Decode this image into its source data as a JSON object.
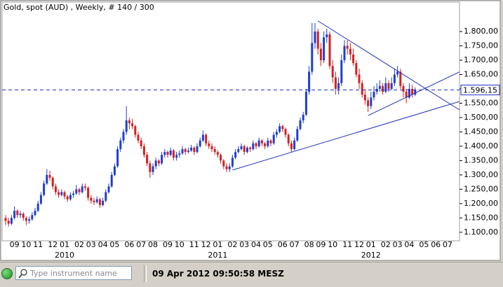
{
  "chart_data": {
    "type": "candlestick",
    "title": "Gold, spot (AUD) , Weekly, # 140 / 300",
    "up_color": "#1f3fd0",
    "down_color": "#d42020",
    "grid": false,
    "ylim": [
      1080,
      1866
    ],
    "yticks": [
      {
        "value": 1100,
        "label": "1.100,00"
      },
      {
        "value": 1150,
        "label": "1.150,00"
      },
      {
        "value": 1200,
        "label": "1.200,00"
      },
      {
        "value": 1250,
        "label": "1.250,00"
      },
      {
        "value": 1300,
        "label": "1.300,00"
      },
      {
        "value": 1350,
        "label": "1.350,00"
      },
      {
        "value": 1400,
        "label": "1.400,00"
      },
      {
        "value": 1450,
        "label": "1.450,00"
      },
      {
        "value": 1500,
        "label": "1.500,00"
      },
      {
        "value": 1550,
        "label": "1.550,00"
      },
      {
        "value": 1600,
        "label": "1.600,00"
      },
      {
        "value": 1650,
        "label": "1.650,00"
      },
      {
        "value": 1700,
        "label": "1.700,00"
      },
      {
        "value": 1750,
        "label": "1.750,00"
      },
      {
        "value": 1800,
        "label": "1.800,00"
      }
    ],
    "last_price": {
      "value": 1596.15,
      "label": "1.596,15"
    },
    "categories": [
      null,
      null,
      null,
      "09",
      null,
      null,
      null,
      "10",
      null,
      null,
      null,
      "11",
      null,
      null,
      null,
      null,
      "12",
      null,
      null,
      null,
      {
        "label": "01",
        "group": "2010"
      },
      null,
      null,
      null,
      null,
      "02",
      null,
      null,
      null,
      "03",
      null,
      null,
      null,
      "04",
      null,
      null,
      null,
      "05",
      null,
      null,
      null,
      null,
      "06",
      null,
      null,
      null,
      "07",
      null,
      null,
      null,
      "08",
      null,
      null,
      null,
      null,
      "09",
      null,
      null,
      null,
      "10",
      null,
      null,
      null,
      null,
      "11",
      null,
      null,
      null,
      "12",
      null,
      null,
      null,
      {
        "label": "01",
        "group": "2011"
      },
      null,
      null,
      null,
      null,
      "02",
      null,
      null,
      null,
      "03",
      null,
      null,
      null,
      "04",
      null,
      null,
      null,
      "05",
      null,
      null,
      null,
      null,
      "06",
      null,
      null,
      null,
      "07",
      null,
      null,
      null,
      null,
      "08",
      null,
      null,
      null,
      "09",
      null,
      null,
      null,
      "10",
      null,
      null,
      null,
      null,
      "11",
      null,
      null,
      null,
      "12",
      null,
      null,
      null,
      {
        "label": "01",
        "group": "2012"
      },
      null,
      null,
      null,
      null,
      "02",
      null,
      null,
      null,
      "03",
      null,
      null,
      null,
      "04",
      null,
      null,
      null,
      null,
      "05",
      null,
      null,
      null,
      "06",
      null,
      null,
      null,
      "07",
      null,
      null,
      null,
      null,
      null
    ],
    "ohlc": [
      [
        1150,
        1160,
        1125,
        1140
      ],
      [
        1140,
        1150,
        1120,
        1130
      ],
      [
        1130,
        1160,
        1125,
        1150
      ],
      [
        1150,
        1190,
        1145,
        1175
      ],
      [
        1175,
        1180,
        1150,
        1160
      ],
      [
        1160,
        1175,
        1150,
        1165
      ],
      [
        1165,
        1170,
        1140,
        1150
      ],
      [
        1150,
        1155,
        1125,
        1140
      ],
      [
        1140,
        1155,
        1130,
        1145
      ],
      [
        1145,
        1170,
        1140,
        1160
      ],
      [
        1160,
        1185,
        1155,
        1175
      ],
      [
        1175,
        1210,
        1170,
        1200
      ],
      [
        1200,
        1240,
        1195,
        1230
      ],
      [
        1230,
        1280,
        1225,
        1270
      ],
      [
        1270,
        1320,
        1265,
        1300
      ],
      [
        1300,
        1315,
        1280,
        1290
      ],
      [
        1290,
        1295,
        1250,
        1260
      ],
      [
        1260,
        1270,
        1230,
        1240
      ],
      [
        1240,
        1250,
        1220,
        1230
      ],
      [
        1230,
        1250,
        1225,
        1240
      ],
      [
        1240,
        1245,
        1215,
        1225
      ],
      [
        1225,
        1230,
        1205,
        1215
      ],
      [
        1215,
        1240,
        1210,
        1230
      ],
      [
        1230,
        1245,
        1220,
        1235
      ],
      [
        1235,
        1265,
        1230,
        1250
      ],
      [
        1250,
        1255,
        1230,
        1240
      ],
      [
        1240,
        1270,
        1235,
        1260
      ],
      [
        1260,
        1270,
        1245,
        1255
      ],
      [
        1255,
        1260,
        1210,
        1220
      ],
      [
        1220,
        1230,
        1200,
        1210
      ],
      [
        1210,
        1220,
        1195,
        1205
      ],
      [
        1205,
        1225,
        1200,
        1215
      ],
      [
        1215,
        1220,
        1185,
        1195
      ],
      [
        1195,
        1220,
        1190,
        1210
      ],
      [
        1210,
        1250,
        1205,
        1240
      ],
      [
        1240,
        1270,
        1235,
        1260
      ],
      [
        1260,
        1310,
        1255,
        1300
      ],
      [
        1300,
        1340,
        1295,
        1330
      ],
      [
        1330,
        1400,
        1325,
        1390
      ],
      [
        1390,
        1430,
        1380,
        1420
      ],
      [
        1420,
        1460,
        1410,
        1450
      ],
      [
        1450,
        1540,
        1440,
        1490
      ],
      [
        1490,
        1500,
        1460,
        1480
      ],
      [
        1480,
        1495,
        1460,
        1470
      ],
      [
        1470,
        1475,
        1430,
        1440
      ],
      [
        1440,
        1450,
        1410,
        1420
      ],
      [
        1420,
        1430,
        1390,
        1400
      ],
      [
        1400,
        1410,
        1360,
        1370
      ],
      [
        1370,
        1380,
        1330,
        1340
      ],
      [
        1340,
        1350,
        1290,
        1310
      ],
      [
        1310,
        1340,
        1300,
        1330
      ],
      [
        1330,
        1360,
        1320,
        1350
      ],
      [
        1350,
        1355,
        1330,
        1340
      ],
      [
        1340,
        1380,
        1335,
        1370
      ],
      [
        1370,
        1390,
        1360,
        1380
      ],
      [
        1380,
        1385,
        1360,
        1370
      ],
      [
        1370,
        1395,
        1365,
        1385
      ],
      [
        1385,
        1390,
        1350,
        1360
      ],
      [
        1360,
        1380,
        1350,
        1370
      ],
      [
        1370,
        1385,
        1360,
        1375
      ],
      [
        1375,
        1400,
        1370,
        1390
      ],
      [
        1390,
        1395,
        1370,
        1380
      ],
      [
        1380,
        1395,
        1375,
        1385
      ],
      [
        1385,
        1405,
        1380,
        1395
      ],
      [
        1395,
        1400,
        1370,
        1380
      ],
      [
        1380,
        1410,
        1375,
        1400
      ],
      [
        1400,
        1430,
        1395,
        1420
      ],
      [
        1420,
        1455,
        1415,
        1440
      ],
      [
        1440,
        1445,
        1400,
        1410
      ],
      [
        1410,
        1420,
        1390,
        1400
      ],
      [
        1400,
        1410,
        1380,
        1390
      ],
      [
        1390,
        1400,
        1370,
        1380
      ],
      [
        1380,
        1385,
        1360,
        1370
      ],
      [
        1370,
        1375,
        1340,
        1350
      ],
      [
        1350,
        1355,
        1320,
        1330
      ],
      [
        1330,
        1340,
        1310,
        1320
      ],
      [
        1320,
        1340,
        1310,
        1330
      ],
      [
        1330,
        1370,
        1325,
        1360
      ],
      [
        1360,
        1390,
        1355,
        1380
      ],
      [
        1380,
        1400,
        1375,
        1390
      ],
      [
        1390,
        1410,
        1385,
        1400
      ],
      [
        1400,
        1405,
        1370,
        1380
      ],
      [
        1380,
        1400,
        1375,
        1395
      ],
      [
        1395,
        1400,
        1380,
        1390
      ],
      [
        1390,
        1420,
        1385,
        1410
      ],
      [
        1410,
        1415,
        1390,
        1400
      ],
      [
        1400,
        1430,
        1395,
        1420
      ],
      [
        1420,
        1425,
        1400,
        1410
      ],
      [
        1410,
        1415,
        1390,
        1400
      ],
      [
        1400,
        1430,
        1395,
        1420
      ],
      [
        1420,
        1425,
        1400,
        1410
      ],
      [
        1410,
        1450,
        1405,
        1440
      ],
      [
        1440,
        1460,
        1430,
        1450
      ],
      [
        1450,
        1480,
        1445,
        1470
      ],
      [
        1470,
        1475,
        1450,
        1460
      ],
      [
        1460,
        1465,
        1430,
        1440
      ],
      [
        1440,
        1445,
        1400,
        1410
      ],
      [
        1410,
        1420,
        1380,
        1390
      ],
      [
        1390,
        1430,
        1385,
        1420
      ],
      [
        1420,
        1470,
        1415,
        1460
      ],
      [
        1460,
        1500,
        1455,
        1490
      ],
      [
        1490,
        1520,
        1480,
        1510
      ],
      [
        1510,
        1600,
        1505,
        1590
      ],
      [
        1590,
        1680,
        1580,
        1660
      ],
      [
        1660,
        1830,
        1650,
        1760
      ],
      [
        1760,
        1830,
        1740,
        1800
      ],
      [
        1800,
        1810,
        1720,
        1740
      ],
      [
        1740,
        1760,
        1680,
        1700
      ],
      [
        1700,
        1800,
        1690,
        1780
      ],
      [
        1780,
        1810,
        1760,
        1790
      ],
      [
        1790,
        1800,
        1670,
        1680
      ],
      [
        1680,
        1700,
        1620,
        1640
      ],
      [
        1640,
        1660,
        1580,
        1600
      ],
      [
        1600,
        1640,
        1580,
        1620
      ],
      [
        1620,
        1720,
        1610,
        1700
      ],
      [
        1700,
        1770,
        1690,
        1750
      ],
      [
        1750,
        1770,
        1720,
        1740
      ],
      [
        1740,
        1760,
        1700,
        1720
      ],
      [
        1720,
        1740,
        1680,
        1690
      ],
      [
        1690,
        1700,
        1640,
        1650
      ],
      [
        1650,
        1670,
        1600,
        1620
      ],
      [
        1620,
        1630,
        1570,
        1580
      ],
      [
        1580,
        1600,
        1545,
        1560
      ],
      [
        1560,
        1570,
        1520,
        1540
      ],
      [
        1540,
        1590,
        1530,
        1570
      ],
      [
        1570,
        1610,
        1560,
        1590
      ],
      [
        1590,
        1620,
        1580,
        1600
      ],
      [
        1600,
        1630,
        1590,
        1610
      ],
      [
        1610,
        1620,
        1580,
        1590
      ],
      [
        1590,
        1640,
        1585,
        1620
      ],
      [
        1620,
        1630,
        1590,
        1600
      ],
      [
        1600,
        1640,
        1595,
        1620
      ],
      [
        1620,
        1670,
        1610,
        1650
      ],
      [
        1650,
        1680,
        1640,
        1660
      ],
      [
        1660,
        1670,
        1600,
        1610
      ],
      [
        1610,
        1620,
        1570,
        1590
      ],
      [
        1590,
        1600,
        1550,
        1570
      ],
      [
        1570,
        1620,
        1565,
        1600
      ],
      [
        1600,
        1615,
        1570,
        1580
      ],
      [
        1580,
        1605,
        1575,
        1596.15
      ],
      null,
      null,
      null,
      null,
      null,
      null,
      null,
      null,
      null,
      null,
      null,
      null,
      null,
      null,
      null,
      null
    ],
    "trendlines": [
      {
        "color": "#2030c0",
        "from": [
          77,
          1317
        ],
        "to": [
          154,
          1556
        ]
      },
      {
        "color": "#2030c0",
        "from": [
          123,
          1507
        ],
        "to": [
          154,
          1659
        ]
      },
      {
        "color": "#2030c0",
        "from": [
          106,
          1837
        ],
        "to": [
          154,
          1527
        ]
      }
    ]
  },
  "status_bar": {
    "search_placeholder": "Type instrument name",
    "timestamp": "09 Apr 2012 09:50:58 MESZ"
  }
}
